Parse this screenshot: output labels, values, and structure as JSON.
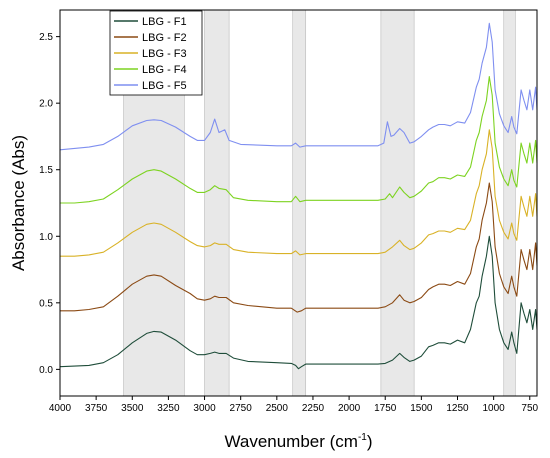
{
  "chart_data": {
    "type": "line",
    "title": "",
    "xlabel": "Wavenumber (cm",
    "xlabel_sup": "-1",
    "xlabel_end": ")",
    "ylabel": "Absorbance (Abs)",
    "xlim": [
      4000,
      700
    ],
    "ylim": [
      -0.2,
      2.7
    ],
    "x_reversed": true,
    "x_ticks": [
      4000,
      3750,
      3500,
      3250,
      3000,
      2750,
      2500,
      2250,
      2000,
      1750,
      1500,
      1250,
      1000,
      750
    ],
    "y_ticks": [
      0.0,
      0.5,
      1.0,
      1.5,
      2.0,
      2.5
    ],
    "y_tick_labels": [
      "0.0",
      "0.5",
      "1.0",
      "1.5",
      "2.0",
      "2.5"
    ],
    "grid": false,
    "legend_position": "top-left",
    "shaded_regions": [
      [
        3560,
        3140
      ],
      [
        3000,
        2830
      ],
      [
        2390,
        2300
      ],
      [
        1780,
        1550
      ],
      [
        930,
        850
      ]
    ],
    "shade_color": "#e8e8e8",
    "series": [
      {
        "name": "LBG - F1",
        "color": "#1f4d3a",
        "points": [
          [
            4000,
            0.02
          ],
          [
            3900,
            0.025
          ],
          [
            3800,
            0.03
          ],
          [
            3700,
            0.05
          ],
          [
            3600,
            0.11
          ],
          [
            3500,
            0.2
          ],
          [
            3400,
            0.27
          ],
          [
            3350,
            0.285
          ],
          [
            3300,
            0.28
          ],
          [
            3200,
            0.22
          ],
          [
            3100,
            0.14
          ],
          [
            3050,
            0.11
          ],
          [
            3000,
            0.11
          ],
          [
            2960,
            0.12
          ],
          [
            2930,
            0.13
          ],
          [
            2900,
            0.12
          ],
          [
            2850,
            0.12
          ],
          [
            2800,
            0.085
          ],
          [
            2700,
            0.06
          ],
          [
            2500,
            0.05
          ],
          [
            2400,
            0.045
          ],
          [
            2370,
            0.03
          ],
          [
            2350,
            0.005
          ],
          [
            2330,
            0.02
          ],
          [
            2300,
            0.04
          ],
          [
            2000,
            0.04
          ],
          [
            1800,
            0.04
          ],
          [
            1750,
            0.045
          ],
          [
            1700,
            0.07
          ],
          [
            1650,
            0.12
          ],
          [
            1620,
            0.09
          ],
          [
            1580,
            0.06
          ],
          [
            1550,
            0.07
          ],
          [
            1500,
            0.1
          ],
          [
            1450,
            0.17
          ],
          [
            1420,
            0.18
          ],
          [
            1380,
            0.2
          ],
          [
            1340,
            0.2
          ],
          [
            1300,
            0.19
          ],
          [
            1250,
            0.22
          ],
          [
            1200,
            0.2
          ],
          [
            1160,
            0.3
          ],
          [
            1120,
            0.5
          ],
          [
            1100,
            0.55
          ],
          [
            1080,
            0.7
          ],
          [
            1050,
            0.85
          ],
          [
            1030,
            1.0
          ],
          [
            1010,
            0.85
          ],
          [
            990,
            0.5
          ],
          [
            960,
            0.3
          ],
          [
            930,
            0.2
          ],
          [
            900,
            0.15
          ],
          [
            875,
            0.28
          ],
          [
            860,
            0.2
          ],
          [
            840,
            0.12
          ],
          [
            810,
            0.5
          ],
          [
            790,
            0.42
          ],
          [
            770,
            0.35
          ],
          [
            750,
            0.45
          ],
          [
            730,
            0.3
          ],
          [
            710,
            0.45
          ],
          [
            700,
            0.3
          ]
        ]
      },
      {
        "name": "LBG - F2",
        "color": "#8b4a14",
        "points": [
          [
            4000,
            0.44
          ],
          [
            3900,
            0.44
          ],
          [
            3800,
            0.45
          ],
          [
            3700,
            0.47
          ],
          [
            3600,
            0.55
          ],
          [
            3500,
            0.64
          ],
          [
            3400,
            0.7
          ],
          [
            3350,
            0.71
          ],
          [
            3300,
            0.7
          ],
          [
            3200,
            0.63
          ],
          [
            3100,
            0.57
          ],
          [
            3050,
            0.53
          ],
          [
            3000,
            0.52
          ],
          [
            2960,
            0.53
          ],
          [
            2930,
            0.55
          ],
          [
            2900,
            0.54
          ],
          [
            2850,
            0.54
          ],
          [
            2800,
            0.5
          ],
          [
            2700,
            0.48
          ],
          [
            2500,
            0.46
          ],
          [
            2400,
            0.46
          ],
          [
            2360,
            0.43
          ],
          [
            2330,
            0.44
          ],
          [
            2300,
            0.46
          ],
          [
            2000,
            0.46
          ],
          [
            1800,
            0.46
          ],
          [
            1750,
            0.47
          ],
          [
            1700,
            0.5
          ],
          [
            1650,
            0.56
          ],
          [
            1620,
            0.52
          ],
          [
            1580,
            0.5
          ],
          [
            1550,
            0.51
          ],
          [
            1500,
            0.54
          ],
          [
            1450,
            0.6
          ],
          [
            1420,
            0.62
          ],
          [
            1380,
            0.64
          ],
          [
            1340,
            0.64
          ],
          [
            1300,
            0.63
          ],
          [
            1250,
            0.66
          ],
          [
            1200,
            0.64
          ],
          [
            1160,
            0.72
          ],
          [
            1120,
            0.92
          ],
          [
            1100,
            0.98
          ],
          [
            1080,
            1.12
          ],
          [
            1050,
            1.25
          ],
          [
            1030,
            1.4
          ],
          [
            1010,
            1.26
          ],
          [
            990,
            0.92
          ],
          [
            960,
            0.72
          ],
          [
            930,
            0.62
          ],
          [
            900,
            0.57
          ],
          [
            875,
            0.7
          ],
          [
            860,
            0.62
          ],
          [
            840,
            0.55
          ],
          [
            810,
            0.9
          ],
          [
            790,
            0.82
          ],
          [
            770,
            0.75
          ],
          [
            750,
            0.9
          ],
          [
            730,
            0.75
          ],
          [
            710,
            0.95
          ],
          [
            700,
            0.78
          ]
        ]
      },
      {
        "name": "LBG - F3",
        "color": "#d9b227",
        "points": [
          [
            4000,
            0.85
          ],
          [
            3900,
            0.85
          ],
          [
            3800,
            0.86
          ],
          [
            3700,
            0.88
          ],
          [
            3600,
            0.95
          ],
          [
            3500,
            1.03
          ],
          [
            3400,
            1.09
          ],
          [
            3350,
            1.1
          ],
          [
            3300,
            1.09
          ],
          [
            3200,
            1.03
          ],
          [
            3100,
            0.96
          ],
          [
            3050,
            0.93
          ],
          [
            3000,
            0.92
          ],
          [
            2960,
            0.93
          ],
          [
            2930,
            0.95
          ],
          [
            2900,
            0.94
          ],
          [
            2850,
            0.94
          ],
          [
            2800,
            0.9
          ],
          [
            2700,
            0.88
          ],
          [
            2500,
            0.87
          ],
          [
            2400,
            0.87
          ],
          [
            2370,
            0.89
          ],
          [
            2340,
            0.86
          ],
          [
            2300,
            0.87
          ],
          [
            2000,
            0.87
          ],
          [
            1800,
            0.87
          ],
          [
            1750,
            0.88
          ],
          [
            1700,
            0.92
          ],
          [
            1650,
            0.97
          ],
          [
            1620,
            0.93
          ],
          [
            1580,
            0.9
          ],
          [
            1550,
            0.91
          ],
          [
            1500,
            0.95
          ],
          [
            1450,
            1.01
          ],
          [
            1420,
            1.02
          ],
          [
            1380,
            1.04
          ],
          [
            1340,
            1.04
          ],
          [
            1300,
            1.03
          ],
          [
            1250,
            1.06
          ],
          [
            1200,
            1.05
          ],
          [
            1160,
            1.12
          ],
          [
            1120,
            1.32
          ],
          [
            1100,
            1.38
          ],
          [
            1080,
            1.5
          ],
          [
            1050,
            1.62
          ],
          [
            1030,
            1.8
          ],
          [
            1010,
            1.66
          ],
          [
            990,
            1.3
          ],
          [
            960,
            1.12
          ],
          [
            930,
            1.03
          ],
          [
            900,
            0.98
          ],
          [
            875,
            1.1
          ],
          [
            860,
            1.02
          ],
          [
            840,
            0.97
          ],
          [
            810,
            1.3
          ],
          [
            790,
            1.22
          ],
          [
            770,
            1.15
          ],
          [
            750,
            1.3
          ],
          [
            730,
            1.15
          ],
          [
            710,
            1.32
          ],
          [
            700,
            1.15
          ]
        ]
      },
      {
        "name": "LBG - F4",
        "color": "#7dd321",
        "points": [
          [
            4000,
            1.25
          ],
          [
            3900,
            1.25
          ],
          [
            3800,
            1.26
          ],
          [
            3700,
            1.28
          ],
          [
            3600,
            1.35
          ],
          [
            3500,
            1.43
          ],
          [
            3400,
            1.49
          ],
          [
            3350,
            1.5
          ],
          [
            3300,
            1.49
          ],
          [
            3200,
            1.43
          ],
          [
            3100,
            1.36
          ],
          [
            3050,
            1.33
          ],
          [
            3000,
            1.33
          ],
          [
            2960,
            1.35
          ],
          [
            2930,
            1.38
          ],
          [
            2900,
            1.36
          ],
          [
            2850,
            1.35
          ],
          [
            2800,
            1.29
          ],
          [
            2700,
            1.27
          ],
          [
            2500,
            1.26
          ],
          [
            2400,
            1.26
          ],
          [
            2370,
            1.3
          ],
          [
            2340,
            1.26
          ],
          [
            2300,
            1.27
          ],
          [
            2000,
            1.27
          ],
          [
            1800,
            1.27
          ],
          [
            1750,
            1.28
          ],
          [
            1720,
            1.32
          ],
          [
            1700,
            1.29
          ],
          [
            1650,
            1.37
          ],
          [
            1620,
            1.33
          ],
          [
            1580,
            1.29
          ],
          [
            1550,
            1.3
          ],
          [
            1500,
            1.34
          ],
          [
            1450,
            1.4
          ],
          [
            1420,
            1.41
          ],
          [
            1380,
            1.44
          ],
          [
            1340,
            1.44
          ],
          [
            1300,
            1.43
          ],
          [
            1250,
            1.46
          ],
          [
            1200,
            1.45
          ],
          [
            1160,
            1.52
          ],
          [
            1120,
            1.72
          ],
          [
            1100,
            1.78
          ],
          [
            1080,
            1.9
          ],
          [
            1050,
            2.02
          ],
          [
            1030,
            2.2
          ],
          [
            1010,
            2.06
          ],
          [
            990,
            1.7
          ],
          [
            960,
            1.52
          ],
          [
            930,
            1.43
          ],
          [
            900,
            1.38
          ],
          [
            875,
            1.5
          ],
          [
            860,
            1.42
          ],
          [
            840,
            1.37
          ],
          [
            810,
            1.7
          ],
          [
            790,
            1.62
          ],
          [
            770,
            1.55
          ],
          [
            750,
            1.7
          ],
          [
            730,
            1.55
          ],
          [
            710,
            1.72
          ],
          [
            700,
            1.55
          ]
        ]
      },
      {
        "name": "LBG - F5",
        "color": "#7f8ff0",
        "points": [
          [
            4000,
            1.65
          ],
          [
            3900,
            1.66
          ],
          [
            3800,
            1.67
          ],
          [
            3700,
            1.69
          ],
          [
            3600,
            1.75
          ],
          [
            3500,
            1.83
          ],
          [
            3400,
            1.87
          ],
          [
            3350,
            1.875
          ],
          [
            3300,
            1.87
          ],
          [
            3200,
            1.82
          ],
          [
            3100,
            1.75
          ],
          [
            3050,
            1.72
          ],
          [
            3000,
            1.72
          ],
          [
            2960,
            1.78
          ],
          [
            2930,
            1.88
          ],
          [
            2900,
            1.78
          ],
          [
            2860,
            1.8
          ],
          [
            2830,
            1.72
          ],
          [
            2750,
            1.69
          ],
          [
            2500,
            1.68
          ],
          [
            2400,
            1.68
          ],
          [
            2370,
            1.7
          ],
          [
            2340,
            1.67
          ],
          [
            2300,
            1.68
          ],
          [
            2000,
            1.68
          ],
          [
            1800,
            1.68
          ],
          [
            1760,
            1.7
          ],
          [
            1735,
            1.86
          ],
          [
            1710,
            1.75
          ],
          [
            1690,
            1.76
          ],
          [
            1650,
            1.81
          ],
          [
            1620,
            1.78
          ],
          [
            1580,
            1.7
          ],
          [
            1550,
            1.71
          ],
          [
            1500,
            1.75
          ],
          [
            1450,
            1.8
          ],
          [
            1420,
            1.82
          ],
          [
            1380,
            1.84
          ],
          [
            1340,
            1.84
          ],
          [
            1300,
            1.83
          ],
          [
            1250,
            1.86
          ],
          [
            1200,
            1.85
          ],
          [
            1160,
            1.93
          ],
          [
            1120,
            2.12
          ],
          [
            1100,
            2.18
          ],
          [
            1080,
            2.3
          ],
          [
            1050,
            2.42
          ],
          [
            1030,
            2.6
          ],
          [
            1010,
            2.46
          ],
          [
            990,
            2.1
          ],
          [
            960,
            1.92
          ],
          [
            930,
            1.83
          ],
          [
            900,
            1.78
          ],
          [
            875,
            1.9
          ],
          [
            860,
            1.82
          ],
          [
            840,
            1.77
          ],
          [
            810,
            2.1
          ],
          [
            790,
            2.02
          ],
          [
            770,
            1.95
          ],
          [
            750,
            2.1
          ],
          [
            730,
            1.95
          ],
          [
            710,
            2.12
          ],
          [
            700,
            1.95
          ]
        ]
      }
    ]
  }
}
